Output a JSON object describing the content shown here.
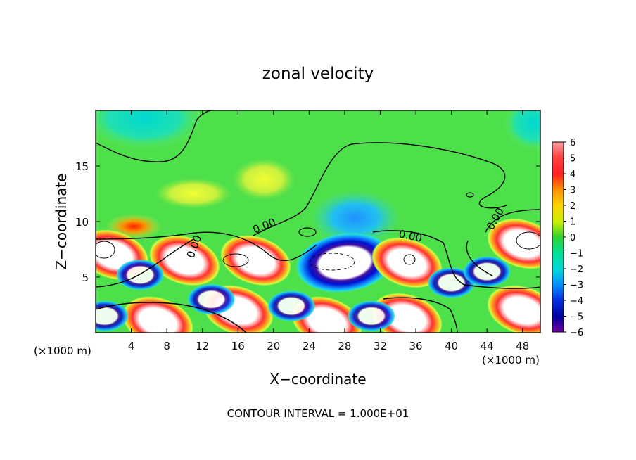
{
  "chart_data": {
    "type": "heatmap",
    "title": "zonal velocity",
    "xlabel": "X−coordinate",
    "ylabel": "Z−coordinate",
    "x_unit_label": "(×1000 m)",
    "footer": "CONTOUR INTERVAL = 1.000E+01",
    "xlim": [
      0,
      50
    ],
    "ylim": [
      0,
      20
    ],
    "x_ticks": [
      "4",
      "8",
      "12",
      "16",
      "20",
      "24",
      "28",
      "32",
      "36",
      "40",
      "44",
      "48"
    ],
    "y_ticks": [
      "5",
      "10",
      "15"
    ],
    "colorbar": {
      "ticks": [
        "6",
        "5",
        "4",
        "3",
        "2",
        "1",
        "0",
        "−1",
        "−2",
        "−3",
        "−4",
        "−5",
        "−6"
      ],
      "range": [
        -6,
        6
      ]
    },
    "contour_labels": [
      "0.00",
      "0.00",
      "0.00",
      "0.00"
    ],
    "features": [
      {
        "kind": "positive",
        "x": 2,
        "z": 7,
        "note": "saturated > 6"
      },
      {
        "kind": "positive",
        "x": 7,
        "z": 1,
        "note": "saturated > 6"
      },
      {
        "kind": "positive",
        "x": 10,
        "z": 6.5,
        "note": "saturated > 6"
      },
      {
        "kind": "positive",
        "x": 18,
        "z": 6.5,
        "note": "saturated > 6"
      },
      {
        "kind": "positive",
        "x": 16,
        "z": 2,
        "note": "saturated > 6"
      },
      {
        "kind": "positive",
        "x": 26,
        "z": 1,
        "note": "saturated > 6"
      },
      {
        "kind": "negative",
        "x": 28,
        "z": 6.3,
        "note": "saturated < -6"
      },
      {
        "kind": "positive",
        "x": 35,
        "z": 6.3,
        "note": "saturated > 6"
      },
      {
        "kind": "positive",
        "x": 35,
        "z": 1.3,
        "note": "saturated > 6"
      },
      {
        "kind": "positive",
        "x": 48,
        "z": 8,
        "note": "saturated > 6"
      },
      {
        "kind": "positive",
        "x": 48,
        "z": 2,
        "note": "saturated > 6"
      }
    ]
  }
}
